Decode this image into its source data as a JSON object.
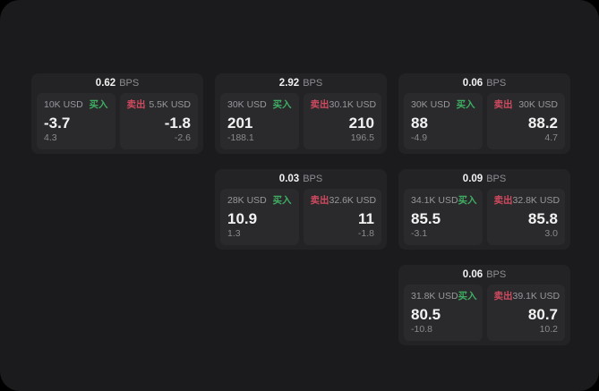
{
  "colors": {
    "buy_green": "#3fae63",
    "sell_red": "#d04a5f",
    "window_bg": "#1b1b1d",
    "card_bg": "#232325",
    "panel_bg": "#2a2a2c"
  },
  "cards": [
    {
      "bps": "0.62",
      "unit": "BPS",
      "buy": {
        "amount": "10K USD",
        "label": "买入",
        "price": "-3.7",
        "sub": "4.3"
      },
      "sell": {
        "label": "卖出",
        "amount": "5.5K USD",
        "price": "-1.8",
        "sub": "-2.6"
      }
    },
    {
      "bps": "2.92",
      "unit": "BPS",
      "buy": {
        "amount": "30K USD",
        "label": "买入",
        "price": "201",
        "sub": "-188.1"
      },
      "sell": {
        "label": "卖出",
        "amount": "30.1K USD",
        "price": "210",
        "sub": "196.5"
      }
    },
    {
      "bps": "0.06",
      "unit": "BPS",
      "buy": {
        "amount": "30K USD",
        "label": "买入",
        "price": "88",
        "sub": "-4.9"
      },
      "sell": {
        "label": "卖出",
        "amount": "30K USD",
        "price": "88.2",
        "sub": "4.7"
      }
    },
    {
      "bps": "0.03",
      "unit": "BPS",
      "buy": {
        "amount": "28K USD",
        "label": "买入",
        "price": "10.9",
        "sub": "1.3"
      },
      "sell": {
        "label": "卖出",
        "amount": "32.6K USD",
        "price": "11",
        "sub": "-1.8"
      }
    },
    {
      "bps": "0.09",
      "unit": "BPS",
      "buy": {
        "amount": "34.1K USD",
        "label": "买入",
        "price": "85.5",
        "sub": "-3.1"
      },
      "sell": {
        "label": "卖出",
        "amount": "32.8K USD",
        "price": "85.8",
        "sub": "3.0"
      }
    },
    {
      "bps": "0.06",
      "unit": "BPS",
      "buy": {
        "amount": "31.8K USD",
        "label": "买入",
        "price": "80.5",
        "sub": "-10.8"
      },
      "sell": {
        "label": "卖出",
        "amount": "39.1K USD",
        "price": "80.7",
        "sub": "10.2"
      }
    }
  ]
}
